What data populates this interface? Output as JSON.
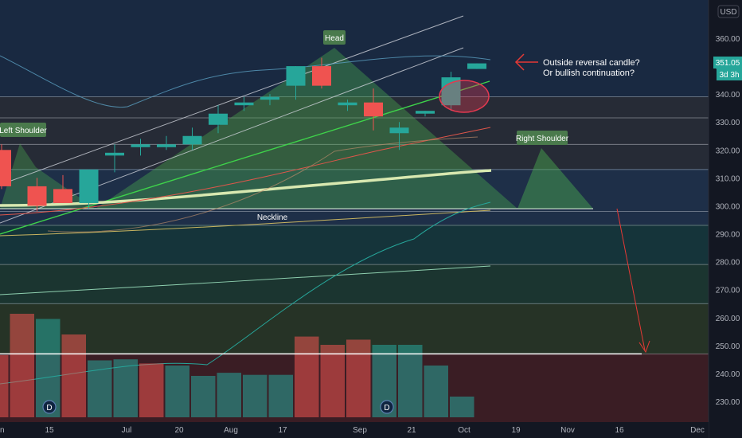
{
  "chart_data": {
    "type": "candlestick",
    "currency": "USD",
    "price_axis": {
      "min": 225,
      "max": 370,
      "ticks": [
        360,
        350,
        340,
        330,
        320,
        310,
        300,
        290,
        280,
        270,
        260,
        250,
        240,
        230
      ]
    },
    "time_labels": [
      "15",
      "Jul",
      "20",
      "Aug",
      "17",
      "Sep",
      "21",
      "Oct",
      "19",
      "Nov",
      "16",
      "Dec"
    ],
    "last_price": "351.05",
    "countdown": "3d 3h",
    "candles": [
      {
        "o": 320,
        "h": 322,
        "l": 306,
        "c": 307
      },
      {
        "o": 307,
        "h": 310,
        "l": 298,
        "c": 300
      },
      {
        "o": 306,
        "h": 311,
        "l": 301,
        "c": 301
      },
      {
        "o": 301,
        "h": 313,
        "l": 299,
        "c": 313
      },
      {
        "o": 318,
        "h": 322,
        "l": 312,
        "c": 319
      },
      {
        "o": 321,
        "h": 324,
        "l": 318,
        "c": 322
      },
      {
        "o": 321,
        "h": 325,
        "l": 320,
        "c": 322
      },
      {
        "o": 322,
        "h": 328,
        "l": 320,
        "c": 325
      },
      {
        "o": 329,
        "h": 336,
        "l": 326,
        "c": 333
      },
      {
        "o": 336,
        "h": 339,
        "l": 334,
        "c": 337
      },
      {
        "o": 338,
        "h": 340,
        "l": 336,
        "c": 339
      },
      {
        "o": 343,
        "h": 350,
        "l": 338,
        "c": 350
      },
      {
        "o": 350,
        "h": 353,
        "l": 342,
        "c": 343
      },
      {
        "o": 336,
        "h": 338,
        "l": 334,
        "c": 337
      },
      {
        "o": 337,
        "h": 342,
        "l": 327,
        "c": 332
      },
      {
        "o": 326,
        "h": 330,
        "l": 320,
        "c": 328
      },
      {
        "o": 333,
        "h": 334,
        "l": 332,
        "c": 334
      },
      {
        "o": 336,
        "h": 348,
        "l": 334,
        "c": 346
      },
      {
        "o": 349,
        "h": 351,
        "l": 349,
        "c": 351
      }
    ],
    "volume_bars": [
      {
        "level": 0.6,
        "color": "red"
      },
      {
        "level": 1.0,
        "color": "red"
      },
      {
        "level": 0.95,
        "color": "green"
      },
      {
        "level": 0.8,
        "color": "red"
      },
      {
        "level": 0.55,
        "color": "green"
      },
      {
        "level": 0.56,
        "color": "green"
      },
      {
        "level": 0.52,
        "color": "red"
      },
      {
        "level": 0.5,
        "color": "green"
      },
      {
        "level": 0.4,
        "color": "green"
      },
      {
        "level": 0.43,
        "color": "green"
      },
      {
        "level": 0.41,
        "color": "green"
      },
      {
        "level": 0.41,
        "color": "green"
      },
      {
        "level": 0.78,
        "color": "red"
      },
      {
        "level": 0.7,
        "color": "red"
      },
      {
        "level": 0.75,
        "color": "red"
      },
      {
        "level": 0.7,
        "color": "green"
      },
      {
        "level": 0.7,
        "color": "green"
      },
      {
        "level": 0.5,
        "color": "green"
      },
      {
        "level": 0.2,
        "color": "green"
      }
    ],
    "horizontal_levels": [
      339,
      331.5,
      322,
      313,
      298,
      293,
      279,
      265,
      247
    ],
    "neckline_price": 299,
    "target_price": 247
  },
  "annotations": {
    "head": "Head",
    "left_shoulder": "Left Shoulder",
    "right_shoulder": "Right Shoulder",
    "neckline": "Neckline",
    "note_line1": "Outside reversal candle?",
    "note_line2": "Or bullish continuation?",
    "event_marker": "D"
  },
  "colors": {
    "background": "#131722",
    "bull": "#26a69a",
    "bear": "#ef5350",
    "pattern_fill": "#4caf50",
    "label_bg": "#4a7a4c",
    "arrow": "#e53935"
  }
}
